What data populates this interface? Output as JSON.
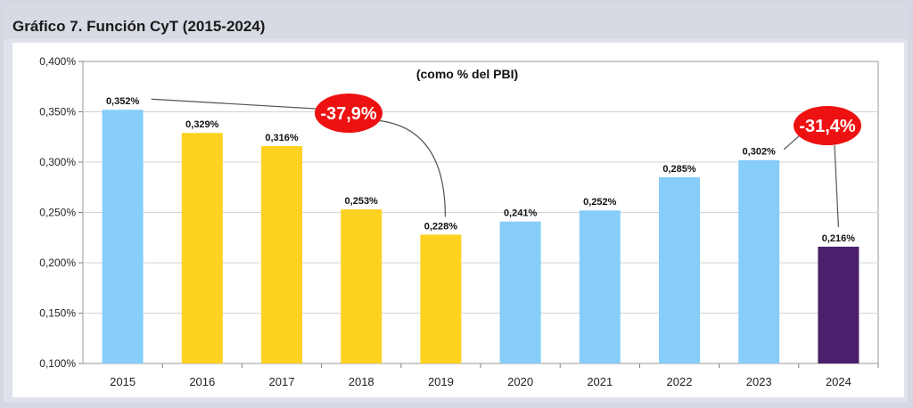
{
  "page_title": "Gráfico 7. Función CyT (2015-2024)",
  "chart_data": {
    "type": "bar",
    "subtitle": "(como % del PBI)",
    "categories": [
      "2015",
      "2016",
      "2017",
      "2018",
      "2019",
      "2020",
      "2021",
      "2022",
      "2023",
      "2024"
    ],
    "values": [
      0.352,
      0.329,
      0.316,
      0.253,
      0.228,
      0.241,
      0.252,
      0.285,
      0.302,
      0.216
    ],
    "value_labels": [
      "0,352%",
      "0,329%",
      "0,316%",
      "0,253%",
      "0,228%",
      "0,241%",
      "0,252%",
      "0,285%",
      "0,302%",
      "0,216%"
    ],
    "bar_colors": [
      "#87cdfa",
      "#fdd221",
      "#fdd221",
      "#fdd221",
      "#fdd221",
      "#87cdfa",
      "#87cdfa",
      "#87cdfa",
      "#87cdfa",
      "#4a1f6b"
    ],
    "ylim": [
      0.1,
      0.4
    ],
    "yticks": [
      0.1,
      0.15,
      0.2,
      0.25,
      0.3,
      0.35,
      0.4
    ],
    "ytick_labels": [
      "0,100%",
      "0,150%",
      "0,200%",
      "0,250%",
      "0,300%",
      "0,350%",
      "0,400%"
    ],
    "grid": true,
    "annotations": [
      {
        "text": "-37,9%",
        "from_index": 0,
        "to_index": 4,
        "color": "#ee1111"
      },
      {
        "text": "-31,4%",
        "from_index": 8,
        "to_index": 9,
        "color": "#ee1111"
      }
    ]
  }
}
